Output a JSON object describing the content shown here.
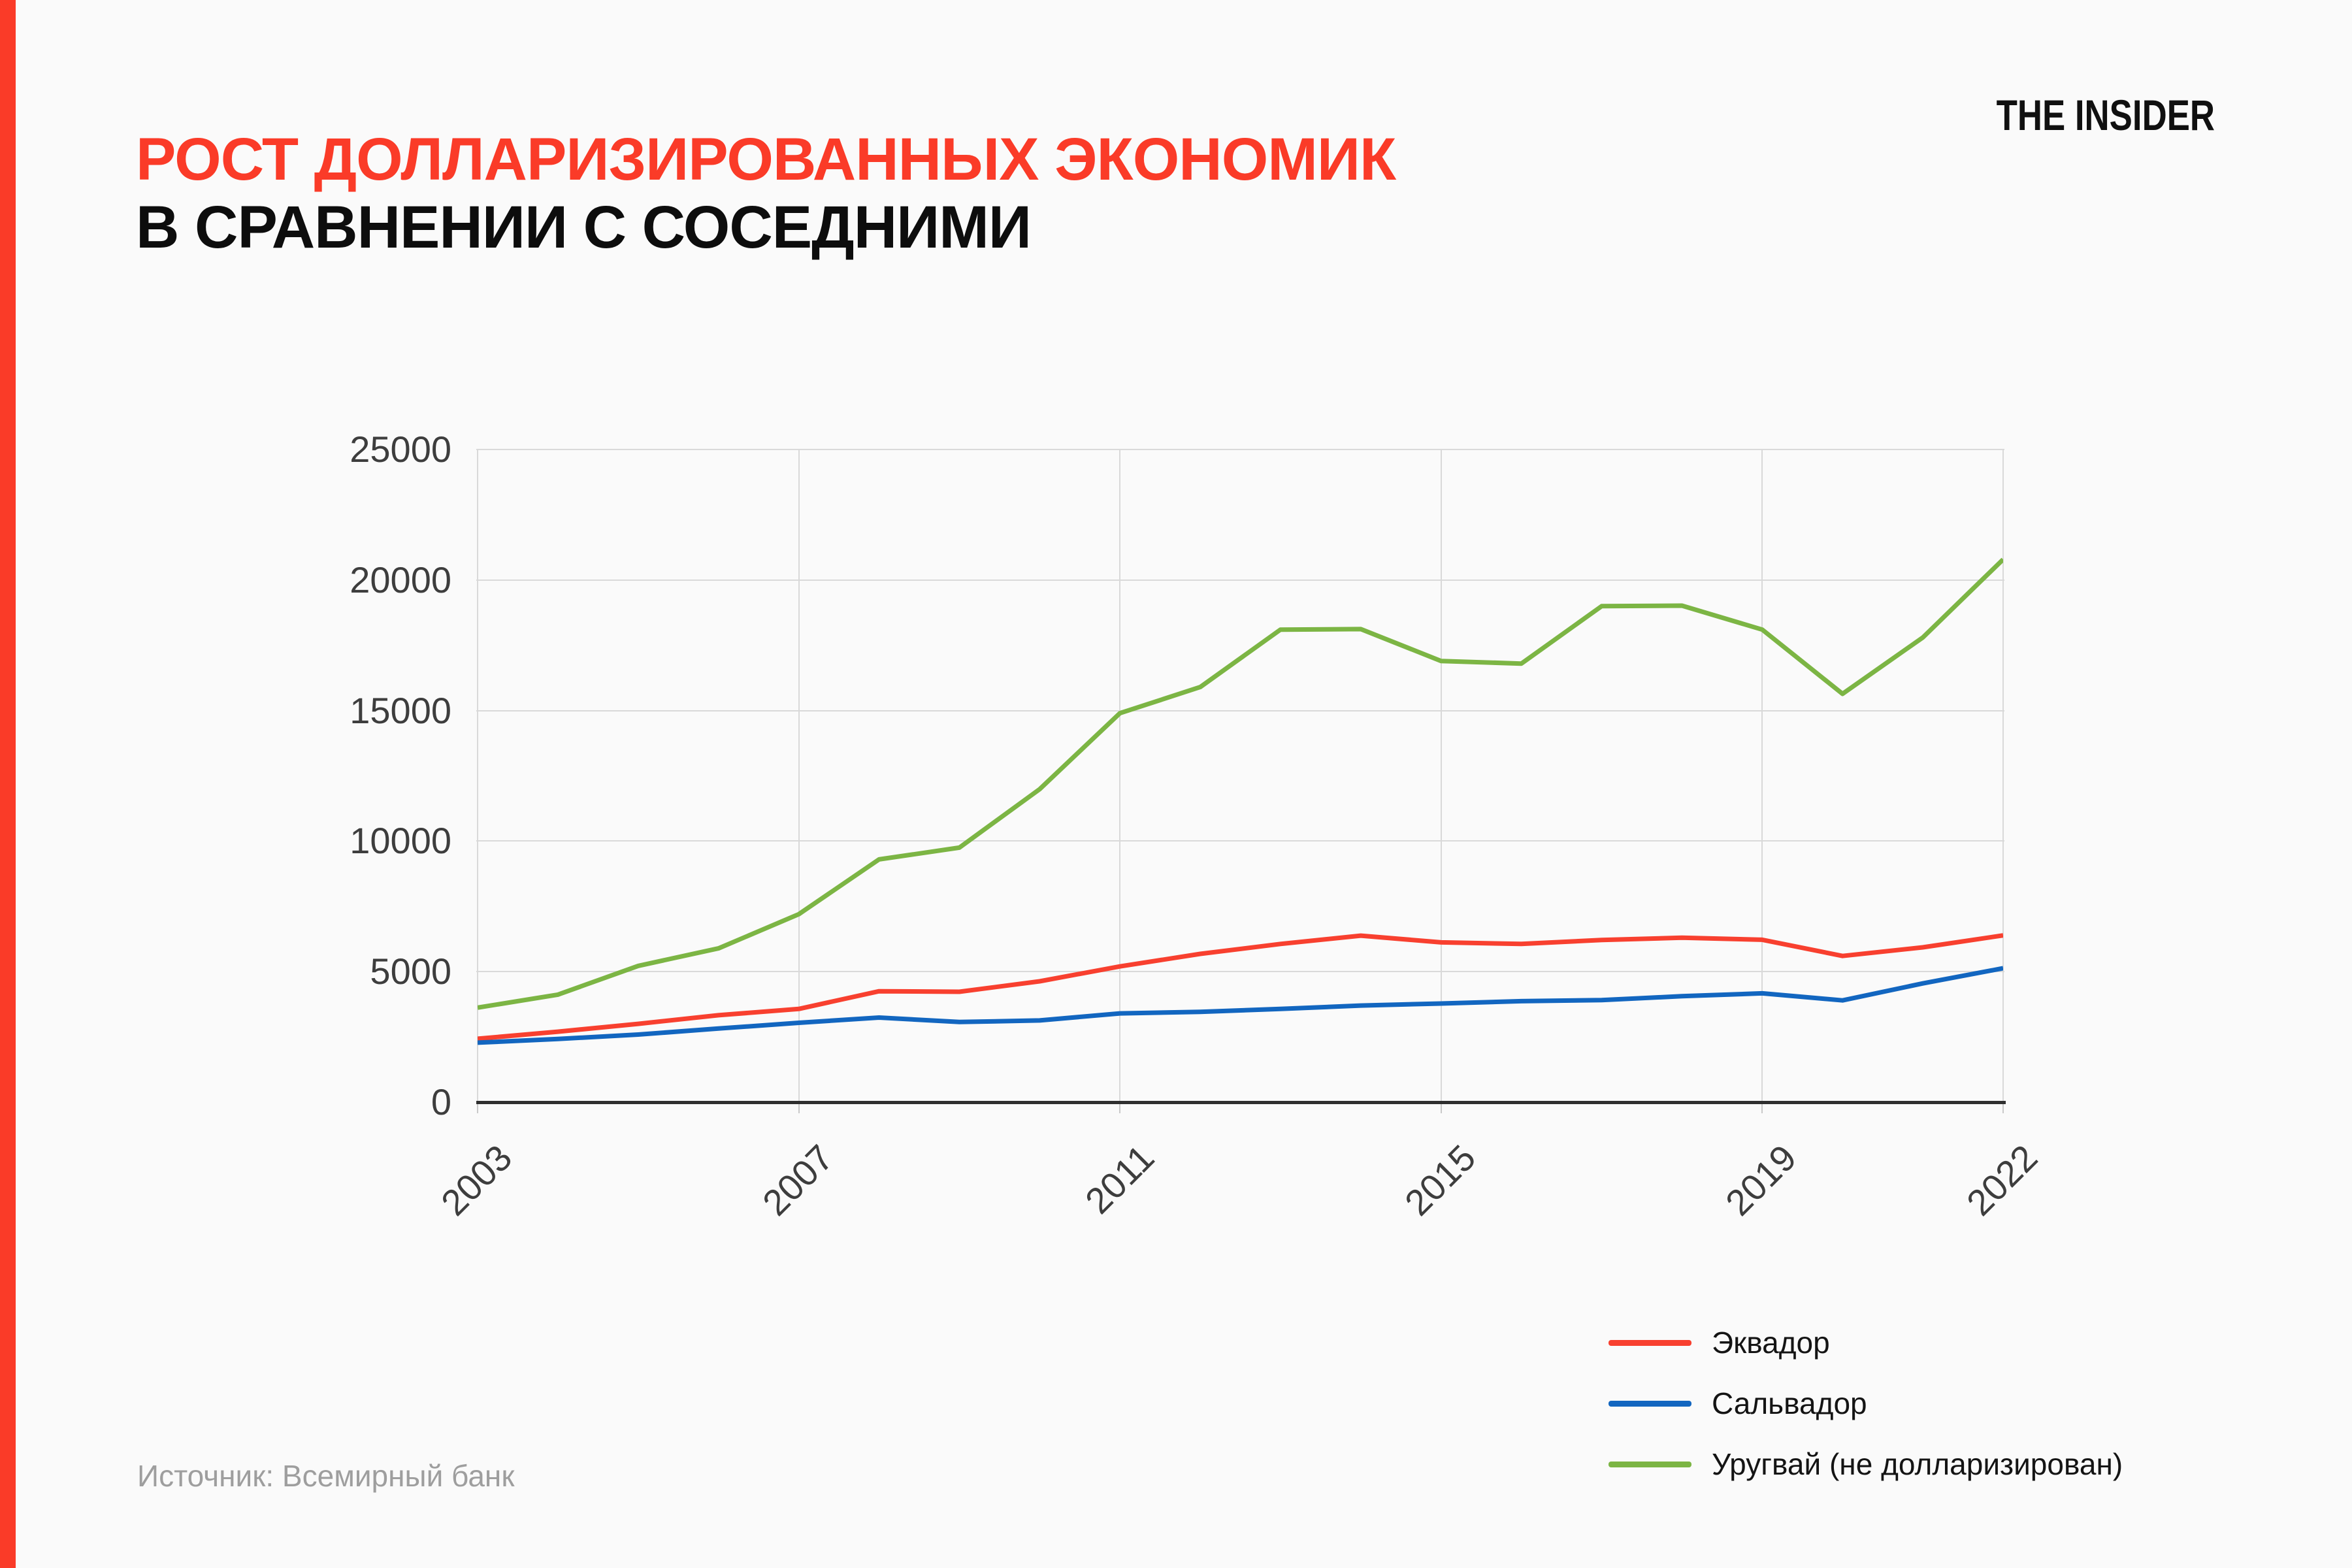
{
  "page": {
    "logo": "THE INSIDER",
    "title_line1": "РОСТ ДОЛЛАРИЗИРОВАННЫХ ЭКОНОМИК",
    "title_line2": "В СРАВНЕНИИ С СОСЕДНИМИ",
    "source": "Источник: Всемирный банк"
  },
  "colors": {
    "accent_red": "#fa3b28",
    "background": "#fafafa",
    "grid": "#d9d9d9",
    "axis": "#2f2f2f",
    "tick_text": "#3d3d3d",
    "source_text": "#9e9e9e",
    "ecuador": "#f8402f",
    "salvador": "#1266c0",
    "uruguay": "#7cb544"
  },
  "chart_data": {
    "type": "line",
    "title": "РОСТ ДОЛЛАРИЗИРОВАННЫХ ЭКОНОМИК В СРАВНЕНИИ С СОСЕДНИМИ",
    "xlabel": "",
    "ylabel": "",
    "x": [
      2003,
      2004,
      2005,
      2006,
      2007,
      2008,
      2009,
      2010,
      2011,
      2012,
      2013,
      2014,
      2015,
      2016,
      2017,
      2018,
      2019,
      2020,
      2021,
      2022
    ],
    "series": [
      {
        "key": "ecuador",
        "name": "Эквадор",
        "color_key": "ecuador",
        "values": [
          2430,
          2700,
          3000,
          3330,
          3570,
          4250,
          4230,
          4630,
          5200,
          5680,
          6060,
          6380,
          6120,
          6060,
          6210,
          6300,
          6220,
          5600,
          5930,
          6390
        ]
      },
      {
        "key": "salvador",
        "name": "Сальвадор",
        "color_key": "salvador",
        "values": [
          2280,
          2420,
          2590,
          2820,
          3040,
          3240,
          3070,
          3130,
          3400,
          3460,
          3570,
          3700,
          3780,
          3870,
          3910,
          4060,
          4170,
          3900,
          4550,
          5130
        ]
      },
      {
        "key": "uruguay",
        "name": "Уругвай (не долларизирован)",
        "color_key": "uruguay",
        "values": [
          3620,
          4120,
          5220,
          5890,
          7200,
          9300,
          9750,
          11990,
          14900,
          15900,
          18100,
          18120,
          16900,
          16800,
          19000,
          19020,
          18100,
          15640,
          17800,
          20790
        ]
      }
    ],
    "ylim": [
      0,
      25000
    ],
    "y_ticks": [
      0,
      5000,
      10000,
      15000,
      20000,
      25000
    ],
    "x_ticks": [
      2003,
      2007,
      2011,
      2015,
      2019,
      2022
    ],
    "grid": true,
    "legend_position": "bottom-right"
  }
}
